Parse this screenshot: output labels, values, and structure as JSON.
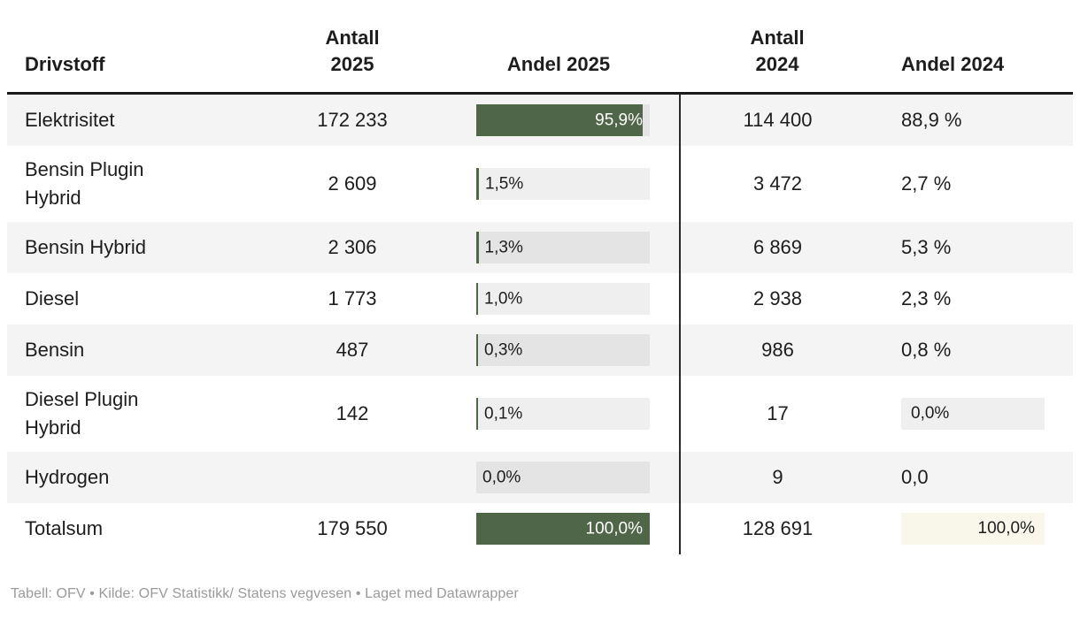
{
  "colors": {
    "bar_green": "#506649",
    "bar_track_gray": "rgba(0,0,0,0.062)",
    "box_gray": "rgba(0,0,0,0.062)",
    "box_cream": "#f9f6ea",
    "header_rule_black": "#1a1a1a",
    "divider_black": "#282828",
    "stripe_gray": "#f4f4f4"
  },
  "table": {
    "header": {
      "drivstoff": "Drivstoff",
      "antall_2025": "Antall\n2025",
      "andel_2025": "Andel 2025",
      "antall_2024": "Antall\n2024",
      "andel_2024": "Andel 2024"
    },
    "rows": [
      {
        "fuel": "Elektrisitet",
        "antall_2025": "172 233",
        "andel_2025": {
          "pct": 95.9,
          "label": "95,9%",
          "label_inside": true
        },
        "antall_2024": "114 400",
        "andel_2024": {
          "type": "text",
          "label": "88,9 %"
        }
      },
      {
        "fuel": "Bensin Plugin Hybrid",
        "antall_2025": "2 609",
        "andel_2025": {
          "pct": 1.5,
          "label": "1,5%",
          "label_inside": false
        },
        "antall_2024": "3 472",
        "andel_2024": {
          "type": "text",
          "label": "2,7 %"
        }
      },
      {
        "fuel": "Bensin Hybrid",
        "antall_2025": "2 306",
        "andel_2025": {
          "pct": 1.3,
          "label": "1,3%",
          "label_inside": false
        },
        "antall_2024": "6 869",
        "andel_2024": {
          "type": "text",
          "label": "5,3 %"
        }
      },
      {
        "fuel": "Diesel",
        "antall_2025": "1 773",
        "andel_2025": {
          "pct": 1.0,
          "label": "1,0%",
          "label_inside": false
        },
        "antall_2024": "2 938",
        "andel_2024": {
          "type": "text",
          "label": "2,3 %"
        }
      },
      {
        "fuel": "Bensin",
        "antall_2025": "487",
        "andel_2025": {
          "pct": 0.3,
          "label": "0,3%",
          "label_inside": false
        },
        "antall_2024": "986",
        "andel_2024": {
          "type": "text",
          "label": "0,8 %"
        }
      },
      {
        "fuel": "Diesel Plugin Hybrid",
        "antall_2025": "142",
        "andel_2025": {
          "pct": 0.1,
          "label": "0,1%",
          "label_inside": false
        },
        "antall_2024": "17",
        "andel_2024": {
          "type": "box",
          "label": "0,0%",
          "bg": "gray",
          "align": "left"
        }
      },
      {
        "fuel": "Hydrogen",
        "antall_2025": "",
        "andel_2025": {
          "pct": 0.0,
          "label": "0,0%",
          "label_inside": false
        },
        "antall_2024": "9",
        "andel_2024": {
          "type": "text",
          "label": "0,0"
        }
      },
      {
        "fuel": "Totalsum",
        "antall_2025": "179 550",
        "andel_2025": {
          "pct": 100.0,
          "label": "100,0%",
          "label_inside": true
        },
        "antall_2024": "128 691",
        "andel_2024": {
          "type": "box",
          "label": "100,0%",
          "bg": "cream",
          "align": "right"
        }
      }
    ]
  },
  "footer": {
    "attribution": "Tabell: OFV • Kilde: OFV Statistikk/ Statens vegvesen • Laget med Datawrapper"
  },
  "chart_data": {
    "type": "table",
    "title": "",
    "columns": [
      "Drivstoff",
      "Antall 2025",
      "Andel 2025 (%)",
      "Antall 2024",
      "Andel 2024 (%)"
    ],
    "rows": [
      [
        "Elektrisitet",
        172233,
        95.9,
        114400,
        88.9
      ],
      [
        "Bensin Plugin Hybrid",
        2609,
        1.5,
        3472,
        2.7
      ],
      [
        "Bensin Hybrid",
        2306,
        1.3,
        6869,
        5.3
      ],
      [
        "Diesel",
        1773,
        1.0,
        2938,
        2.3
      ],
      [
        "Bensin",
        487,
        0.3,
        986,
        0.8
      ],
      [
        "Diesel Plugin Hybrid",
        142,
        0.1,
        17,
        0.0
      ],
      [
        "Hydrogen",
        null,
        0.0,
        9,
        0.0
      ],
      [
        "Totalsum",
        179550,
        100.0,
        128691,
        100.0
      ]
    ],
    "layout_hints": {
      "andel_2025_rendered_as": "bar",
      "bar_color": "#506649",
      "row_striping": true,
      "divider_between_2025_and_2024": true
    }
  }
}
